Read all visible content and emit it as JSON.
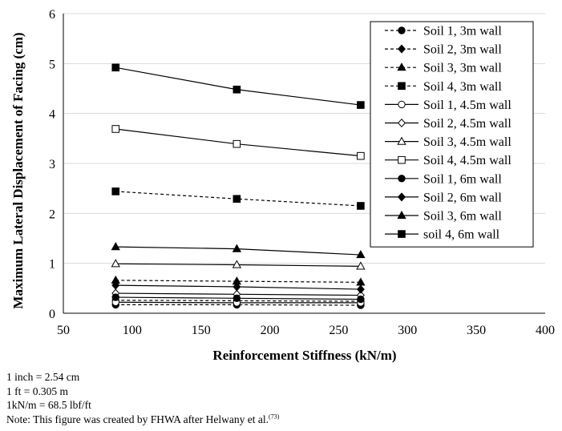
{
  "chart_data": {
    "type": "line",
    "xlabel": "Reinforcement Stiffness (kN/m)",
    "ylabel": "Maximum Lateral Displacement of Facing (cm)",
    "xlim": [
      50,
      400
    ],
    "ylim": [
      0,
      6
    ],
    "xticks": [
      50,
      100,
      150,
      200,
      250,
      300,
      350,
      400
    ],
    "yticks": [
      0,
      1,
      2,
      3,
      4,
      5,
      6
    ],
    "grid": true,
    "legend_position": "top-right",
    "x": [
      88,
      176,
      266
    ],
    "series": [
      {
        "name": "Soil 1, 3m wall",
        "marker": "circle",
        "filled": true,
        "dash": "dashed",
        "values": [
          0.17,
          0.17,
          0.16
        ]
      },
      {
        "name": "Soil 2, 3m wall",
        "marker": "diamond",
        "filled": true,
        "dash": "dashed",
        "values": [
          0.26,
          0.25,
          0.24
        ]
      },
      {
        "name": "Soil 3, 3m wall",
        "marker": "triangle",
        "filled": true,
        "dash": "dashed",
        "values": [
          0.66,
          0.64,
          0.62
        ]
      },
      {
        "name": "Soil 4, 3m wall",
        "marker": "square",
        "filled": true,
        "dash": "dashed",
        "values": [
          2.44,
          2.29,
          2.15
        ]
      },
      {
        "name": "Soil 1, 4.5m wall",
        "marker": "circle",
        "filled": false,
        "dash": "solid",
        "values": [
          0.22,
          0.21,
          0.21
        ]
      },
      {
        "name": "Soil 2, 4.5m wall",
        "marker": "diamond",
        "filled": false,
        "dash": "solid",
        "values": [
          0.4,
          0.38,
          0.36
        ]
      },
      {
        "name": "Soil 3, 4.5m wall",
        "marker": "triangle",
        "filled": false,
        "dash": "solid",
        "values": [
          0.99,
          0.97,
          0.94
        ]
      },
      {
        "name": "Soil 4, 4.5m wall",
        "marker": "square",
        "filled": false,
        "dash": "solid",
        "values": [
          3.69,
          3.39,
          3.15
        ]
      },
      {
        "name": "Soil 1, 6m wall",
        "marker": "circle",
        "filled": true,
        "dash": "solid",
        "values": [
          0.32,
          0.3,
          0.28
        ]
      },
      {
        "name": "Soil 2, 6m wall",
        "marker": "diamond",
        "filled": true,
        "dash": "solid",
        "values": [
          0.56,
          0.53,
          0.48
        ]
      },
      {
        "name": "Soil 3, 6m wall",
        "marker": "triangle",
        "filled": true,
        "dash": "solid",
        "values": [
          1.33,
          1.29,
          1.17
        ]
      },
      {
        "name": "soil 4, 6m wall",
        "marker": "square",
        "filled": true,
        "dash": "solid",
        "values": [
          4.92,
          4.48,
          4.17
        ]
      }
    ]
  },
  "notes": {
    "line1": "1 inch = 2.54 cm",
    "line2": "1 ft = 0.305 m",
    "line3": "1kN/m = 68.5 lbf/ft",
    "line4": "Note: This figure was created by FHWA after Helwany et al.",
    "line4_ref": "(73)"
  }
}
